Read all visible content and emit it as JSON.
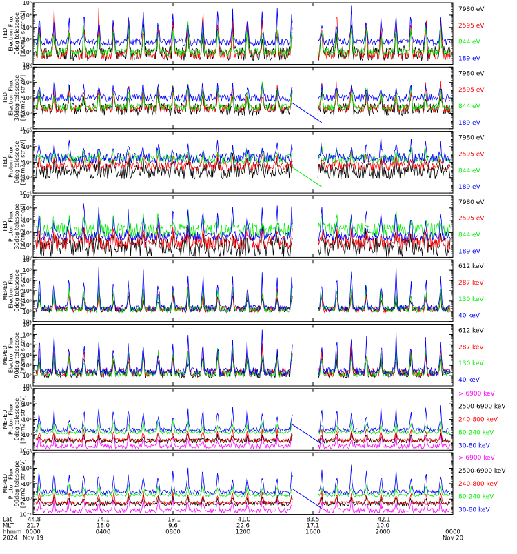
{
  "colors": {
    "black": "#000000",
    "red": "#ff0000",
    "green": "#00ee00",
    "blue": "#0000ff",
    "magenta": "#ff00ff"
  },
  "chart_data": [
    {
      "type": "line",
      "ylabel": [
        "TED",
        "Electron Flux",
        "0deg telescope",
        "[#/cm2-s-str-eV]"
      ],
      "log": true,
      "ylim_exp": [
        0,
        5
      ],
      "yticks": [
        {
          "e": 0,
          "l": "10⁰"
        },
        {
          "e": 1,
          "l": "10¹"
        },
        {
          "e": 2,
          "l": "10²"
        },
        {
          "e": 3,
          "l": "10³"
        },
        {
          "e": 4,
          "l": "10⁴"
        },
        {
          "e": 5,
          "l": "10⁵"
        }
      ],
      "series": [
        {
          "name": "7980 eV",
          "color": "#000000",
          "base": 0.9,
          "spread": 0.6,
          "burst": 2.6
        },
        {
          "name": "2595 eV",
          "color": "#ff0000",
          "base": 0.8,
          "spread": 0.4,
          "burst": 3.5
        },
        {
          "name": "844 eV",
          "color": "#00ee00",
          "base": 1.0,
          "spread": 0.3,
          "burst": 2.3
        },
        {
          "name": "189 eV",
          "color": "#0000ff",
          "base": 1.8,
          "spread": 0.3,
          "burst": 2.5
        }
      ],
      "bridge": false
    },
    {
      "type": "line",
      "ylabel": [
        "TED",
        "Electron Flux",
        "30deg telescope",
        "[#/cm2-s-str-eV]"
      ],
      "log": true,
      "ylim_exp": [
        -2,
        6
      ],
      "yticks": [
        {
          "e": -2,
          "l": "10⁻²"
        },
        {
          "e": 0,
          "l": "10⁰"
        },
        {
          "e": 2,
          "l": "10²"
        },
        {
          "e": 4,
          "l": "10⁴"
        },
        {
          "e": 6,
          "l": "10⁶"
        }
      ],
      "series": [
        {
          "name": "7980 eV",
          "color": "#000000",
          "base": 0.5,
          "spread": 0.8,
          "burst": 3.0
        },
        {
          "name": "2595 eV",
          "color": "#ff0000",
          "base": 0.6,
          "spread": 0.5,
          "burst": 3.5
        },
        {
          "name": "844 eV",
          "color": "#00ee00",
          "base": 0.8,
          "spread": 0.4,
          "burst": 3.0
        },
        {
          "name": "189 eV",
          "color": "#0000ff",
          "base": 2.0,
          "spread": 0.5,
          "burst": 2.0
        }
      ],
      "bridge": true,
      "bridge_color": "#0000ff"
    },
    {
      "type": "line",
      "ylabel": [
        "TED",
        "Proton Flux",
        "0deg telescope",
        "[#/cm2-s-str-eV]"
      ],
      "log": true,
      "ylim_exp": [
        -2,
        6
      ],
      "yticks": [
        {
          "e": -2,
          "l": "10⁻²"
        },
        {
          "e": 0,
          "l": "10⁰"
        },
        {
          "e": 2,
          "l": "10²"
        },
        {
          "e": 4,
          "l": "10⁴"
        },
        {
          "e": 6,
          "l": "10⁶"
        }
      ],
      "series": [
        {
          "name": "7980 eV",
          "color": "#000000",
          "base": 0.8,
          "spread": 1.0,
          "burst": 1.5
        },
        {
          "name": "2595 eV",
          "color": "#ff0000",
          "base": 1.5,
          "spread": 0.6,
          "burst": 1.5
        },
        {
          "name": "844 eV",
          "color": "#00ee00",
          "base": 2.4,
          "spread": 0.6,
          "burst": 1.2
        },
        {
          "name": "189 eV",
          "color": "#0000ff",
          "base": 2.5,
          "spread": 0.7,
          "burst": 2.2
        }
      ],
      "bridge": true,
      "bridge_color": "#00ee00"
    },
    {
      "type": "line",
      "ylabel": [
        "TED",
        "Proton Flux",
        "30deg telescope",
        "[#/cm2-s-str-eV]"
      ],
      "log": true,
      "ylim_exp": [
        0,
        5
      ],
      "yticks": [
        {
          "e": 0,
          "l": "10⁰"
        },
        {
          "e": 1,
          "l": "10¹"
        },
        {
          "e": 2,
          "l": "10²"
        },
        {
          "e": 3,
          "l": "10³"
        },
        {
          "e": 4,
          "l": "10⁴"
        },
        {
          "e": 5,
          "l": "10⁵"
        }
      ],
      "series": [
        {
          "name": "7980 eV",
          "color": "#000000",
          "base": 0.8,
          "spread": 0.8,
          "burst": 1.2
        },
        {
          "name": "2595 eV",
          "color": "#ff0000",
          "base": 1.2,
          "spread": 0.6,
          "burst": 1.2
        },
        {
          "name": "844 eV",
          "color": "#00ee00",
          "base": 2.2,
          "spread": 0.6,
          "burst": 1.2
        },
        {
          "name": "189 eV",
          "color": "#0000ff",
          "base": 1.7,
          "spread": 0.4,
          "burst": 2.5
        }
      ],
      "bridge": false
    },
    {
      "type": "line",
      "ylabel": [
        "MEPED",
        "Electron Flux",
        "0deg telescope",
        "[#/cm2-s-str]"
      ],
      "log": true,
      "ylim_exp": [
        1,
        7
      ],
      "yticks": [
        {
          "e": 1,
          "l": "10¹"
        },
        {
          "e": 2,
          "l": "10²"
        },
        {
          "e": 3,
          "l": "10³"
        },
        {
          "e": 4,
          "l": "10⁴"
        },
        {
          "e": 5,
          "l": "10⁵"
        },
        {
          "e": 6,
          "l": "10⁶"
        },
        {
          "e": 7,
          "l": "10⁷"
        }
      ],
      "series": [
        {
          "name": "612 keV",
          "color": "#000000",
          "base": 2.2,
          "spread": 0.3,
          "burst": 1.5
        },
        {
          "name": "287 keV",
          "color": "#ff0000",
          "base": 2.2,
          "spread": 0.3,
          "burst": 2.0
        },
        {
          "name": "130 keV",
          "color": "#00ee00",
          "base": 2.2,
          "spread": 0.3,
          "burst": 2.3
        },
        {
          "name": "40 keV",
          "color": "#0000ff",
          "base": 2.3,
          "spread": 0.3,
          "burst": 3.5
        }
      ],
      "bridge": false
    },
    {
      "type": "line",
      "ylabel": [
        "MEPED",
        "Electron Flux",
        "90deg telescope",
        "[#/cm2-s-str]"
      ],
      "log": true,
      "ylim_exp": [
        1,
        7
      ],
      "yticks": [
        {
          "e": 1,
          "l": "10¹"
        },
        {
          "e": 2,
          "l": "10²"
        },
        {
          "e": 3,
          "l": "10³"
        },
        {
          "e": 4,
          "l": "10⁴"
        },
        {
          "e": 5,
          "l": "10⁵"
        },
        {
          "e": 6,
          "l": "10⁶"
        },
        {
          "e": 7,
          "l": "10⁷"
        }
      ],
      "series": [
        {
          "name": "612 keV",
          "color": "#000000",
          "base": 2.2,
          "spread": 0.4,
          "burst": 2.0
        },
        {
          "name": "287 keV",
          "color": "#ff0000",
          "base": 2.3,
          "spread": 0.4,
          "burst": 2.5
        },
        {
          "name": "130 keV",
          "color": "#00ee00",
          "base": 2.2,
          "spread": 0.3,
          "burst": 2.5
        },
        {
          "name": "40 keV",
          "color": "#0000ff",
          "base": 2.4,
          "spread": 0.4,
          "burst": 3.5
        }
      ],
      "bridge": false
    },
    {
      "type": "line",
      "ylabel": [
        "MEPED",
        "Proton Flux",
        "0deg telescope",
        "[#/cm2-s-str-keV]"
      ],
      "log": true,
      "ylim_exp": [
        -2,
        6
      ],
      "yticks": [
        {
          "e": -2,
          "l": "10⁻²"
        },
        {
          "e": 0,
          "l": "10⁰"
        },
        {
          "e": 2,
          "l": "10²"
        },
        {
          "e": 4,
          "l": "10⁴"
        },
        {
          "e": 6,
          "l": "10⁶"
        }
      ],
      "series": [
        {
          "name": "> 6900 keV",
          "color": "#ff00ff",
          "base": -1.5,
          "spread": 0.3,
          "burst": 1.5
        },
        {
          "name": "2500-6900 keV",
          "color": "#000000",
          "base": -0.8,
          "spread": 0.3,
          "burst": 1.0
        },
        {
          "name": "240-800 keV",
          "color": "#ff0000",
          "base": -0.7,
          "spread": 0.2,
          "burst": 1.5
        },
        {
          "name": "80-240 keV",
          "color": "#00ee00",
          "base": 0.3,
          "spread": 0.2,
          "burst": 1.5
        },
        {
          "name": "30-80 keV",
          "color": "#0000ff",
          "base": 0.6,
          "spread": 0.3,
          "burst": 3.0
        }
      ],
      "bridge": true,
      "bridge_color": "#0000ff"
    },
    {
      "type": "line",
      "ylabel": [
        "MEPED",
        "Proton Flux",
        "90deg telescope",
        "[#/cm2-s-str-keV]"
      ],
      "log": true,
      "ylim_exp": [
        -2,
        6
      ],
      "yticks": [
        {
          "e": -2,
          "l": "10⁻²"
        },
        {
          "e": 0,
          "l": "10⁰"
        },
        {
          "e": 2,
          "l": "10²"
        },
        {
          "e": 4,
          "l": "10⁴"
        },
        {
          "e": 6,
          "l": "10⁶"
        }
      ],
      "series": [
        {
          "name": "> 6900 keV",
          "color": "#ff00ff",
          "base": -1.5,
          "spread": 0.3,
          "burst": 1.5
        },
        {
          "name": "2500-6900 keV",
          "color": "#000000",
          "base": -0.6,
          "spread": 0.3,
          "burst": 1.0
        },
        {
          "name": "240-800 keV",
          "color": "#ff0000",
          "base": -0.5,
          "spread": 0.2,
          "burst": 1.5
        },
        {
          "name": "80-240 keV",
          "color": "#00ee00",
          "base": 0.5,
          "spread": 0.2,
          "burst": 1.5
        },
        {
          "name": "30-80 keV",
          "color": "#0000ff",
          "base": 0.9,
          "spread": 0.3,
          "burst": 3.0
        }
      ],
      "bridge": true,
      "bridge_color": "#0000ff"
    }
  ],
  "x_axis": {
    "row_labels": [
      "Lat",
      "MLT",
      "hhmm",
      "2024"
    ],
    "xlim_hours": [
      0,
      24
    ],
    "gap_hours": [
      14.85,
      16.25
    ],
    "ticks": [
      {
        "hours": 0,
        "lat": "-44.8",
        "mlt": "21.7",
        "hhmm": "0000",
        "date": "Nov 19"
      },
      {
        "hours": 4,
        "lat": "74.1",
        "mlt": "18.0",
        "hhmm": "0400",
        "date": ""
      },
      {
        "hours": 8,
        "lat": "-19.1",
        "mlt": "9.6",
        "hhmm": "0800",
        "date": ""
      },
      {
        "hours": 12,
        "lat": "-41.0",
        "mlt": "22.6",
        "hhmm": "1200",
        "date": ""
      },
      {
        "hours": 16,
        "lat": "83.5",
        "mlt": "17.1",
        "hhmm": "1600",
        "date": ""
      },
      {
        "hours": 20,
        "lat": "-42.1",
        "mlt": "10.0",
        "hhmm": "2000",
        "date": ""
      },
      {
        "hours": 24,
        "lat": "",
        "mlt": "",
        "hhmm": "0000",
        "date": "Nov 20"
      }
    ]
  }
}
